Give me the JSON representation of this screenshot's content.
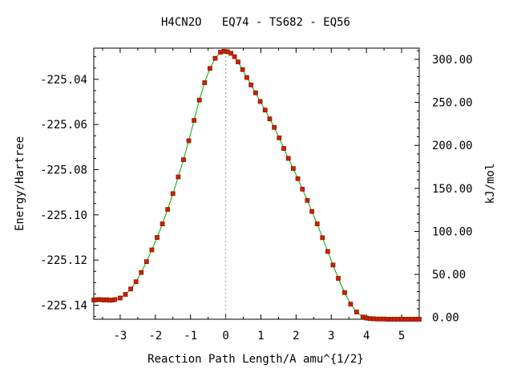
{
  "chart_data": {
    "type": "scatter",
    "title": "H4CN2O   EQ74 - TS682 - EQ56",
    "xlabel": "Reaction Path Length/A amu^{1/2}",
    "ylabel_left": "Energy/Hartree",
    "ylabel_right": "kJ/mol",
    "xlim": [
      -3.75,
      5.5
    ],
    "ylim": [
      -225.1462,
      -225.0262
    ],
    "y2lim": [
      -2.1,
      313.0
    ],
    "x_ticks": [
      -3,
      -2,
      -1,
      0,
      1,
      2,
      3,
      4,
      5
    ],
    "x_tick_labels": [
      "-3",
      "-2",
      "-1",
      "0",
      "1",
      "2",
      "3",
      "4",
      "5"
    ],
    "y_ticks": [
      -225.14,
      -225.12,
      -225.1,
      -225.08,
      -225.06,
      -225.04
    ],
    "y_tick_labels": [
      "-225.14",
      "-225.12",
      "-225.10",
      "-225.08",
      "-225.06",
      "-225.04"
    ],
    "y2_ticks": [
      0,
      50,
      100,
      150,
      200,
      250,
      300
    ],
    "y2_tick_labels": [
      "0.00",
      "50.00",
      "100.00",
      "150.00",
      "200.00",
      "250.00",
      "300.00"
    ],
    "ts_marker_x": 0,
    "line_color": "#00aa00",
    "marker_color": "#cc2200",
    "marker_edge_color": "#8b1a00",
    "ts_line_color": "#999999",
    "points": {
      "x": [
        -3.75,
        -3.68,
        -3.6,
        -3.52,
        -3.45,
        -3.38,
        -3.3,
        -3.22,
        -3.15,
        -3.0,
        -2.85,
        -2.7,
        -2.55,
        -2.4,
        -2.25,
        -2.1,
        -1.95,
        -1.8,
        -1.65,
        -1.5,
        -1.35,
        -1.2,
        -1.05,
        -0.9,
        -0.75,
        -0.6,
        -0.45,
        -0.3,
        -0.15,
        -0.05,
        0.05,
        0.15,
        0.25,
        0.35,
        0.48,
        0.6,
        0.72,
        0.85,
        0.98,
        1.12,
        1.25,
        1.38,
        1.52,
        1.65,
        1.78,
        1.92,
        2.05,
        2.18,
        2.32,
        2.45,
        2.6,
        2.75,
        2.9,
        3.05,
        3.2,
        3.38,
        3.55,
        3.72,
        3.9,
        4.0,
        4.1,
        4.2,
        4.3,
        4.4,
        4.5,
        4.6,
        4.7,
        4.8,
        4.9,
        5.0,
        5.1,
        5.2,
        5.3,
        5.4,
        5.5
      ],
      "y": [
        -225.1377,
        -225.1376,
        -225.1375,
        -225.1376,
        -225.1377,
        -225.1376,
        -225.1378,
        -225.1377,
        -225.1375,
        -225.1368,
        -225.1352,
        -225.1328,
        -225.1296,
        -225.1255,
        -225.1207,
        -225.1155,
        -225.11,
        -225.104,
        -225.0976,
        -225.0906,
        -225.0832,
        -225.0756,
        -225.0672,
        -225.0582,
        -225.0492,
        -225.0415,
        -225.0352,
        -225.0307,
        -225.028,
        -225.0276,
        -225.0278,
        -225.0285,
        -225.03,
        -225.0323,
        -225.0357,
        -225.0392,
        -225.0425,
        -225.046,
        -225.0498,
        -225.0536,
        -225.0575,
        -225.0613,
        -225.0659,
        -225.0706,
        -225.075,
        -225.0795,
        -225.084,
        -225.0886,
        -225.0936,
        -225.0985,
        -225.104,
        -225.1101,
        -225.1162,
        -225.1222,
        -225.1281,
        -225.1344,
        -225.1395,
        -225.143,
        -225.1452,
        -225.1457,
        -225.1459,
        -225.146,
        -225.1461,
        -225.1461,
        -225.1461,
        -225.1462,
        -225.1462,
        -225.1462,
        -225.1462,
        -225.1462,
        -225.1462,
        -225.1462,
        -225.1462,
        -225.1462,
        -225.1462
      ]
    }
  }
}
